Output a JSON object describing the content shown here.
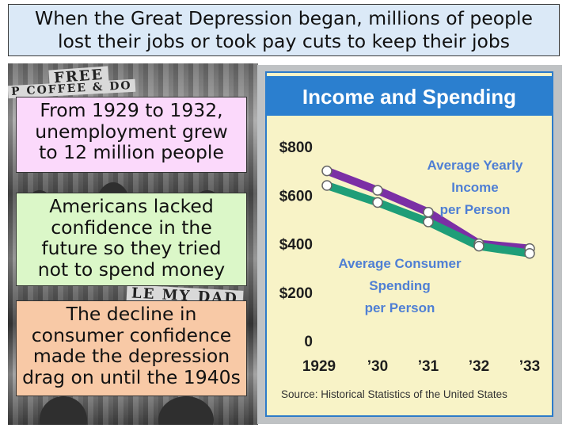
{
  "title": {
    "line1": "When the Great Depression began, millions of people",
    "line2": "lost their jobs or took pay cuts to keep their jobs"
  },
  "boxes": [
    {
      "lines": [
        "From 1929 to 1932,",
        "unemployment grew",
        "to 12 million people"
      ],
      "color": "#fbd9fb"
    },
    {
      "lines": [
        "Americans lacked",
        "confidence in the",
        "future so they tried",
        "not to spend money"
      ],
      "color": "#dbf7c8"
    },
    {
      "lines": [
        "The decline in",
        "consumer confidence",
        "made the depression",
        "drag on until the 1940s"
      ],
      "color": "#f8c9a6"
    }
  ],
  "photo": {
    "sign_fragments": [
      "FREE",
      "P COFFEE & DO",
      "LE MY DAD"
    ]
  },
  "chart_data": {
    "type": "line",
    "title": "Income and Spending",
    "categories": [
      "1929",
      "’30",
      "’31",
      "’32",
      "’33"
    ],
    "yticks": [
      "$800",
      "$600",
      "$400",
      "$200",
      "0"
    ],
    "ylim": [
      0,
      800
    ],
    "grid": false,
    "series": [
      {
        "name": "Average Yearly Income per Person",
        "label_lines": [
          "Average Yearly",
          "Income",
          "per Person"
        ],
        "color": "#7b2fa5",
        "values": [
          700,
          620,
          530,
          400,
          380
        ]
      },
      {
        "name": "Average Consumer Spending per Person",
        "label_lines": [
          "Average Consumer",
          "Spending",
          "per Person"
        ],
        "color": "#1f9e78",
        "values": [
          640,
          570,
          490,
          390,
          360
        ]
      }
    ],
    "source": "Source: Historical Statistics of the United States",
    "colors": {
      "panel_bg": "#f8f3c7",
      "panel_border": "#2d7bc9",
      "title_band": "#2b7fcf",
      "label_text": "#4f7fd4"
    }
  }
}
